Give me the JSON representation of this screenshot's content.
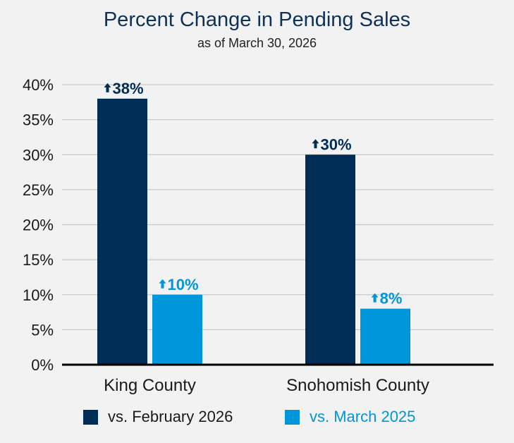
{
  "chart_data": {
    "type": "bar",
    "title": "Percent Change in Pending Sales",
    "subtitle": "as of March 30, 2026",
    "xlabel": "",
    "ylabel": "",
    "categories": [
      "King County",
      "Snohomish County"
    ],
    "series": [
      {
        "name": "vs. February 2026",
        "color": "#002d56",
        "values": [
          38,
          30
        ],
        "labels": [
          "38%",
          "30%"
        ]
      },
      {
        "name": "vs. March 2025",
        "color": "#0096db",
        "values": [
          10,
          8
        ],
        "labels": [
          "10%",
          "8%"
        ]
      }
    ],
    "ylim": [
      0,
      40
    ],
    "yticks": [
      0,
      5,
      10,
      15,
      20,
      25,
      30,
      35,
      40
    ],
    "ytick_labels": [
      "0%",
      "5%",
      "10%",
      "15%",
      "20%",
      "25%",
      "30%",
      "35%",
      "40%"
    ],
    "grid": true,
    "legend_position": "bottom",
    "label_prefix_icon": "up-arrow"
  }
}
